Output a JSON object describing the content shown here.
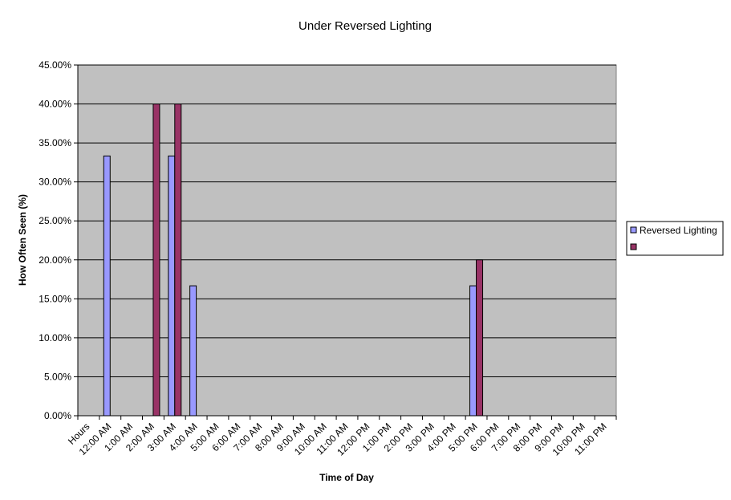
{
  "colors": {
    "plot_background": "#c0c0c0",
    "gridline": "#000000",
    "series_1": "#9999ff",
    "series_2": "#993366"
  },
  "chart_data": {
    "type": "bar",
    "title": "Under Reversed Lighting",
    "xlabel": "Time of Day",
    "ylabel": "How Often Seen (%)",
    "ylim": [
      0,
      45
    ],
    "y_tick_values": [
      0,
      5,
      10,
      15,
      20,
      25,
      30,
      35,
      40,
      45
    ],
    "y_tick_labels": [
      "0.00%",
      "5.00%",
      "10.00%",
      "15.00%",
      "20.00%",
      "25.00%",
      "30.00%",
      "35.00%",
      "40.00%",
      "45.00%"
    ],
    "categories": [
      "Hours",
      "12:00 AM",
      "1:00 AM",
      "2:00 AM",
      "3:00 AM",
      "4:00 AM",
      "5:00 AM",
      "6:00 AM",
      "7:00 AM",
      "8:00 AM",
      "9:00 AM",
      "10:00 AM",
      "11:00 AM",
      "12:00 PM",
      "1:00 PM",
      "2:00 PM",
      "3:00 PM",
      "4:00 PM",
      "5:00 PM",
      "6:00 PM",
      "7:00 PM",
      "8:00 PM",
      "9:00 PM",
      "10:00 PM",
      "11:00 PM"
    ],
    "series": [
      {
        "name": "Reversed Lighting",
        "values": [
          0,
          33.33,
          0,
          0,
          33.33,
          16.67,
          0,
          0,
          0,
          0,
          0,
          0,
          0,
          0,
          0,
          0,
          0,
          0,
          16.67,
          0,
          0,
          0,
          0,
          0,
          0
        ]
      },
      {
        "name": "",
        "values": [
          0,
          0,
          0,
          40,
          40,
          0,
          0,
          0,
          0,
          0,
          0,
          0,
          0,
          0,
          0,
          0,
          0,
          0,
          20,
          0,
          0,
          0,
          0,
          0,
          0
        ]
      }
    ],
    "grid": true,
    "legend_position": "right"
  }
}
